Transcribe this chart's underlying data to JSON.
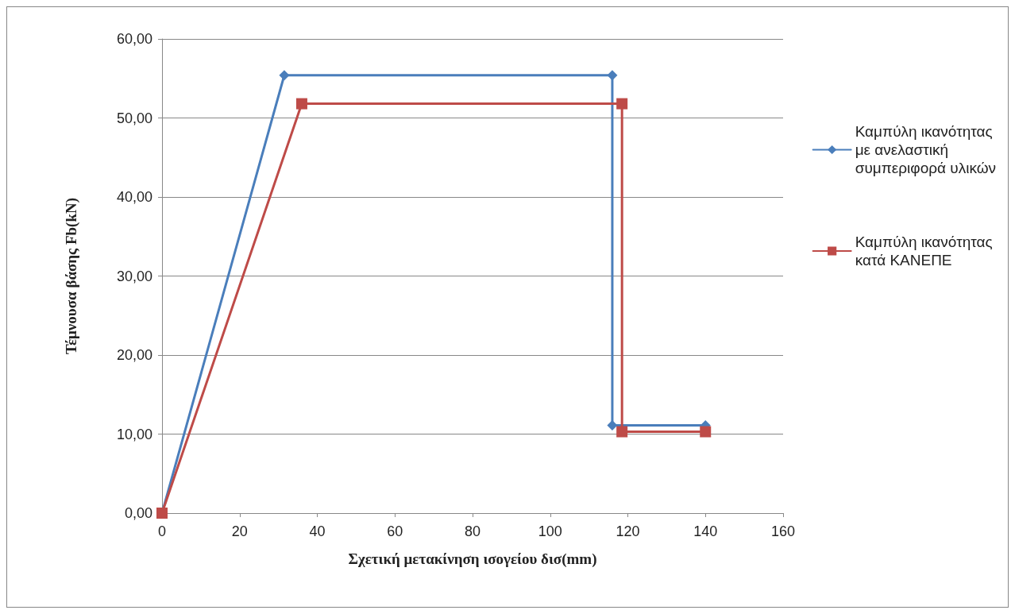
{
  "chart_data": {
    "type": "line",
    "xlabel": "Σχετική μετακίνηση ισογείου δισ(mm)",
    "ylabel": "Τέμνουσα βάσης Fb(kN)",
    "series": [
      {
        "name": "Καμπύλη ικανότητας με ανελαστική συμπεριφορά υλικών",
        "color": "#4a7ebb",
        "marker": "diamond",
        "x": [
          0,
          31.5,
          116,
          116,
          140
        ],
        "values": [
          0,
          55.4,
          55.4,
          11.1,
          11.1
        ]
      },
      {
        "name": "Καμπύλη ικανότητας κατά ΚΑΝΕΠΕ",
        "color": "#be4b48",
        "marker": "square",
        "x": [
          0,
          36,
          118.5,
          118.5,
          140
        ],
        "values": [
          0,
          51.8,
          51.8,
          10.3,
          10.3
        ]
      }
    ],
    "xlim": [
      0,
      160
    ],
    "xticks": [
      0,
      20,
      40,
      60,
      80,
      100,
      120,
      140,
      160
    ],
    "ylim": [
      0,
      60
    ],
    "yticks": [
      {
        "value": 0,
        "label": "0,00"
      },
      {
        "value": 10,
        "label": "10,00"
      },
      {
        "value": 20,
        "label": "20,00"
      },
      {
        "value": 30,
        "label": "30,00"
      },
      {
        "value": 40,
        "label": "40,00"
      },
      {
        "value": 50,
        "label": "50,00"
      },
      {
        "value": 60,
        "label": "60,00"
      }
    ],
    "grid": "y",
    "legend": "right",
    "line_style": "solid"
  }
}
